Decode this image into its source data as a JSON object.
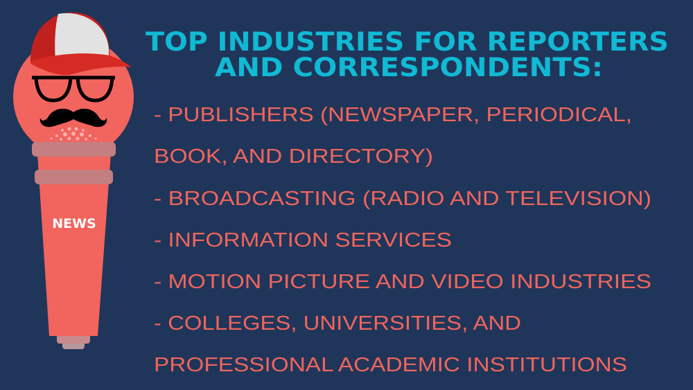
{
  "title": {
    "line1": "TOP INDUSTRIES FOR REPORTERS",
    "line2": "AND CORRESPONDENTS:"
  },
  "list_lines": [
    "- PUBLISHERS (NEWSPAPER, PERIODICAL,",
    "BOOK, AND DIRECTORY)",
    "- BROADCASTING (RADIO AND TELEVISION)",
    "- INFORMATION SERVICES",
    "- MOTION PICTURE AND VIDEO INDUSTRIES",
    "- COLLEGES, UNIVERSITIES, AND",
    "PROFESSIONAL ACADEMIC INSTITUTIONS"
  ],
  "illustration": {
    "label": "NEWS",
    "icon": "microphone-mascot-icon"
  },
  "colors": {
    "background": "#20355a",
    "title": "#10b9d4",
    "list_text": "#f0655c",
    "microphone": "#f2645e"
  }
}
